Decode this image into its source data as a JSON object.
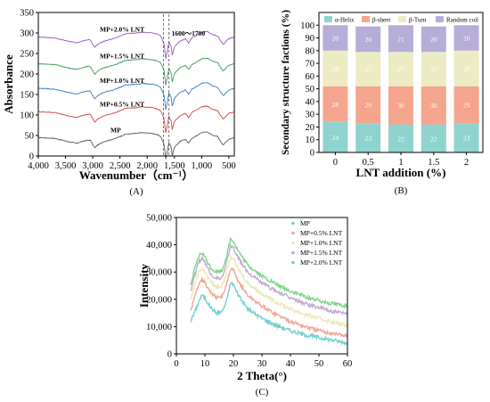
{
  "colors": {
    "axis": "#000000",
    "ftir": [
      "#5a5a5a",
      "#d6453d",
      "#3d7cc9",
      "#3c9a5a",
      "#9b59b6"
    ],
    "struct": [
      "#8fd3cf",
      "#f5a58d",
      "#ecebc4",
      "#b6aed8"
    ],
    "xrd": [
      "#72cfd0",
      "#f2a695",
      "#ece7b7",
      "#c2aad2",
      "#7ed487"
    ],
    "dash": "#555555"
  },
  "chart_data": [
    {
      "type": "line",
      "panel": "(A)",
      "xlabel": "Wavenumber（cm⁻¹）",
      "ylabel": "Absorbance",
      "xlim": [
        4000,
        400
      ],
      "ylim": [
        0,
        350
      ],
      "xticks": [
        4000,
        3500,
        3000,
        2500,
        2000,
        1500,
        1000,
        500
      ],
      "xtick_labels": [
        "4,000",
        "3,500",
        "3,000",
        "2,500",
        "2,000",
        "1,500",
        "1,000",
        "500"
      ],
      "yticks": [
        0,
        50,
        100,
        150,
        200,
        250,
        300,
        350
      ],
      "annotation": "1600～1700",
      "annotation_band": [
        1700,
        1600
      ],
      "series": [
        {
          "name": "MP",
          "offset": 45
        },
        {
          "name": "MP+0.5% LNT",
          "offset": 108
        },
        {
          "name": "MP+1.0% LNT",
          "offset": 165
        },
        {
          "name": "MP+1.5% LNT",
          "offset": 225
        },
        {
          "name": "MP+2.0% LNT",
          "offset": 290
        }
      ],
      "shape_points": [
        [
          4000,
          0
        ],
        [
          3700,
          -2
        ],
        [
          3450,
          -10
        ],
        [
          3300,
          -14
        ],
        [
          3150,
          -8
        ],
        [
          3050,
          -6
        ],
        [
          2960,
          -26
        ],
        [
          2930,
          -20
        ],
        [
          2880,
          -16
        ],
        [
          2800,
          -10
        ],
        [
          2600,
          -3
        ],
        [
          2400,
          8
        ],
        [
          2200,
          10
        ],
        [
          2100,
          12
        ],
        [
          2000,
          11
        ],
        [
          1900,
          10
        ],
        [
          1800,
          6
        ],
        [
          1750,
          2
        ],
        [
          1720,
          -8
        ],
        [
          1690,
          -16
        ],
        [
          1660,
          -52
        ],
        [
          1640,
          -40
        ],
        [
          1600,
          -12
        ],
        [
          1560,
          -22
        ],
        [
          1540,
          -44
        ],
        [
          1500,
          -24
        ],
        [
          1460,
          -18
        ],
        [
          1400,
          -10
        ],
        [
          1300,
          -4
        ],
        [
          1240,
          -14
        ],
        [
          1180,
          -2
        ],
        [
          1100,
          4
        ],
        [
          1000,
          12
        ],
        [
          900,
          14
        ],
        [
          800,
          6
        ],
        [
          700,
          2
        ],
        [
          650,
          -10
        ],
        [
          600,
          -18
        ],
        [
          550,
          -10
        ],
        [
          500,
          -4
        ],
        [
          450,
          -2
        ],
        [
          400,
          0
        ]
      ]
    },
    {
      "type": "bar",
      "stacked": true,
      "panel": "(B)",
      "xlabel": "LNT addition (%)",
      "ylabel": "Secondary structure factions (%)",
      "categories": [
        "0",
        "0.5",
        "1",
        "1.5",
        "2"
      ],
      "ylim": [
        0,
        110
      ],
      "yticks": [
        0,
        10,
        20,
        30,
        40,
        50,
        60,
        70,
        80,
        90,
        100
      ],
      "legend": [
        "α-Helix",
        "β-sheet",
        "β-Turn",
        "Random coil"
      ],
      "series": [
        {
          "name": "α-Helix",
          "values": [
            24,
            23,
            22,
            22,
            23
          ]
        },
        {
          "name": "β-sheet",
          "values": [
            28,
            29,
            30,
            30,
            29
          ]
        },
        {
          "name": "β-Turn",
          "values": [
            28,
            27,
            27,
            27,
            28
          ]
        },
        {
          "name": "Random coil",
          "values": [
            20,
            20,
            21,
            20,
            20
          ]
        }
      ]
    },
    {
      "type": "scatter",
      "panel": "(C)",
      "xlabel": "2 Theta(°)",
      "ylabel": "Intensity",
      "xlim": [
        0,
        60
      ],
      "ylim": [
        0,
        50000
      ],
      "xticks": [
        0,
        10,
        20,
        30,
        40,
        50,
        60
      ],
      "yticks": [
        0,
        10000,
        20000,
        30000,
        40000,
        50000
      ],
      "ytick_labels": [
        "0",
        "10,000",
        "20,000",
        "30,000",
        "40,000",
        "50,000"
      ],
      "legend_position": "top-right",
      "series": [
        {
          "name": "MP",
          "points": [
            [
              5,
              12000
            ],
            [
              6.5,
              15500
            ],
            [
              8,
              19500
            ],
            [
              9,
              21500
            ],
            [
              10,
              20500
            ],
            [
              12,
              17000
            ],
            [
              14,
              15000
            ],
            [
              16,
              15500
            ],
            [
              17.5,
              19000
            ],
            [
              19,
              26000
            ],
            [
              20,
              25500
            ],
            [
              21,
              23000
            ],
            [
              23,
              19500
            ],
            [
              25,
              16500
            ],
            [
              30,
              13000
            ],
            [
              35,
              10500
            ],
            [
              40,
              8500
            ],
            [
              45,
              7000
            ],
            [
              50,
              6000
            ],
            [
              55,
              5000
            ],
            [
              60,
              4000
            ]
          ]
        },
        {
          "name": "MP+0.5% LNT",
          "points": [
            [
              5,
              16000
            ],
            [
              6.5,
              21000
            ],
            [
              8,
              26500
            ],
            [
              9,
              27500
            ],
            [
              10,
              26000
            ],
            [
              12,
              22500
            ],
            [
              14,
              20500
            ],
            [
              16,
              21000
            ],
            [
              17.5,
              25000
            ],
            [
              19,
              31000
            ],
            [
              20,
              30500
            ],
            [
              21,
              28000
            ],
            [
              23,
              24500
            ],
            [
              25,
              21500
            ],
            [
              30,
              17500
            ],
            [
              35,
              14500
            ],
            [
              40,
              12000
            ],
            [
              45,
              10000
            ],
            [
              50,
              8500
            ],
            [
              55,
              7500
            ],
            [
              60,
              6500
            ]
          ]
        },
        {
          "name": "MP+1.0% LNT",
          "points": [
            [
              5,
              20000
            ],
            [
              6.5,
              25500
            ],
            [
              8,
              30500
            ],
            [
              9,
              31500
            ],
            [
              10,
              30000
            ],
            [
              12,
              26500
            ],
            [
              14,
              24500
            ],
            [
              16,
              25000
            ],
            [
              17.5,
              29500
            ],
            [
              19,
              35500
            ],
            [
              20,
              35000
            ],
            [
              21,
              32500
            ],
            [
              23,
              29000
            ],
            [
              25,
              26000
            ],
            [
              30,
              22000
            ],
            [
              35,
              19000
            ],
            [
              40,
              16500
            ],
            [
              45,
              14500
            ],
            [
              50,
              13000
            ],
            [
              55,
              11500
            ],
            [
              60,
              10500
            ]
          ]
        },
        {
          "name": "MP+1.5% LNT",
          "points": [
            [
              5,
              23000
            ],
            [
              6.5,
              29000
            ],
            [
              8,
              34000
            ],
            [
              9,
              35000
            ],
            [
              10,
              33500
            ],
            [
              12,
              29500
            ],
            [
              14,
              27500
            ],
            [
              16,
              28000
            ],
            [
              17.5,
              33000
            ],
            [
              19,
              39500
            ],
            [
              20,
              39000
            ],
            [
              21,
              36500
            ],
            [
              23,
              33000
            ],
            [
              25,
              30000
            ],
            [
              30,
              26000
            ],
            [
              35,
              23000
            ],
            [
              40,
              20500
            ],
            [
              45,
              18500
            ],
            [
              50,
              17000
            ],
            [
              55,
              15500
            ],
            [
              60,
              14500
            ]
          ]
        },
        {
          "name": "MP+2.0% LNT",
          "points": [
            [
              5,
              25000
            ],
            [
              6.5,
              31500
            ],
            [
              8,
              36000
            ],
            [
              9,
              37000
            ],
            [
              10,
              35500
            ],
            [
              12,
              31500
            ],
            [
              14,
              30000
            ],
            [
              16,
              30500
            ],
            [
              17.5,
              35500
            ],
            [
              19,
              42000
            ],
            [
              20,
              41500
            ],
            [
              21,
              39000
            ],
            [
              23,
              35500
            ],
            [
              25,
              32500
            ],
            [
              30,
              28500
            ],
            [
              35,
              25500
            ],
            [
              40,
              23000
            ],
            [
              45,
              21000
            ],
            [
              50,
              19500
            ],
            [
              55,
              18500
            ],
            [
              60,
              17500
            ]
          ]
        }
      ]
    }
  ]
}
